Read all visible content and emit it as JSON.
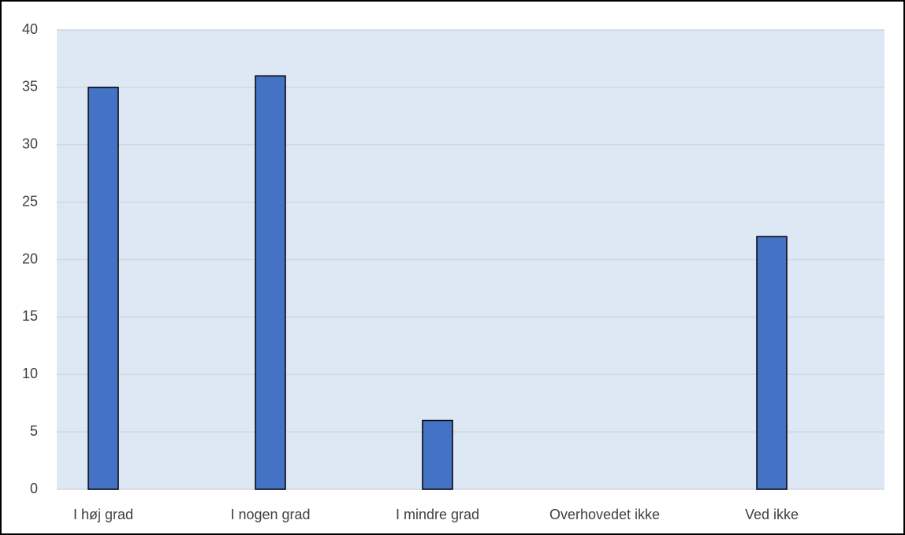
{
  "chart_data": {
    "type": "bar",
    "categories": [
      "I høj grad",
      "I nogen grad",
      "I mindre grad",
      "Overhovedet ikke",
      "Ved ikke"
    ],
    "values": [
      35,
      36,
      6,
      0,
      22
    ],
    "color": "#4472c4",
    "ylim": [
      0,
      40
    ],
    "yticks": [
      0,
      5,
      10,
      15,
      20,
      25,
      30,
      35,
      40
    ],
    "grid": true
  }
}
